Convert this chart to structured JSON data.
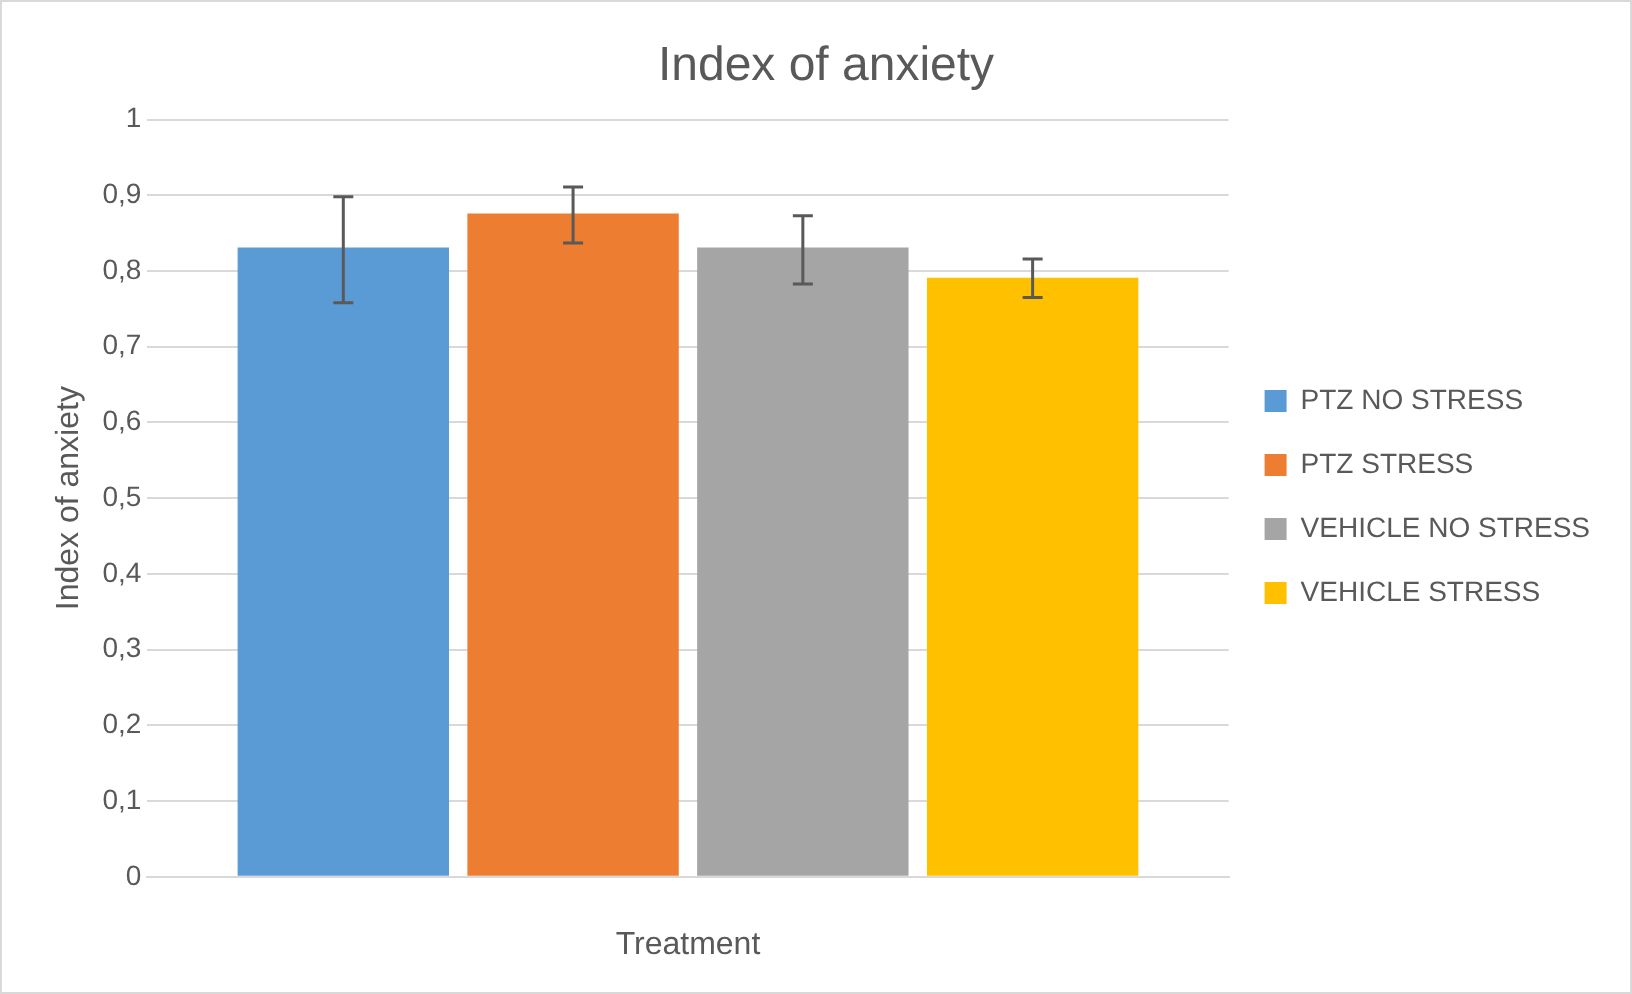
{
  "chart_data": {
    "type": "bar",
    "title": "Index of anxiety",
    "xlabel": "Treatment",
    "ylabel": "Index of anxiety",
    "categories": [
      null
    ],
    "series": [
      {
        "name": "PTZ NO STRESS",
        "color": "#5b9bd5",
        "values": [
          0.831
        ],
        "errors": [
          [
            0.758,
            0.898
          ]
        ]
      },
      {
        "name": "PTZ STRESS",
        "color": "#ed7d31",
        "values": [
          0.876
        ],
        "errors": [
          [
            0.837,
            0.911
          ]
        ]
      },
      {
        "name": "VEHICLE NO STRESS",
        "color": "#a5a5a5",
        "values": [
          0.831
        ],
        "errors": [
          [
            0.783,
            0.873
          ]
        ]
      },
      {
        "name": "VEHICLE STRESS",
        "color": "#ffc000",
        "values": [
          0.791
        ],
        "errors": [
          [
            0.765,
            0.816
          ]
        ]
      }
    ],
    "ylim": [
      0,
      1
    ],
    "yticks": [
      0,
      {
        "value": 0.1,
        "label": "0,1"
      },
      {
        "value": 0.2,
        "label": "0,2"
      },
      {
        "value": 0.3,
        "label": "0,3"
      },
      {
        "value": 0.4,
        "label": "0,4"
      },
      {
        "value": 0.5,
        "label": "0,5"
      },
      {
        "value": 0.6,
        "label": "0,6"
      },
      {
        "value": 0.7,
        "label": "0,7"
      },
      {
        "value": 0.8,
        "label": "0,8"
      },
      {
        "value": 0.9,
        "label": "0,9"
      },
      1
    ],
    "grid": "y",
    "legend": "right"
  }
}
